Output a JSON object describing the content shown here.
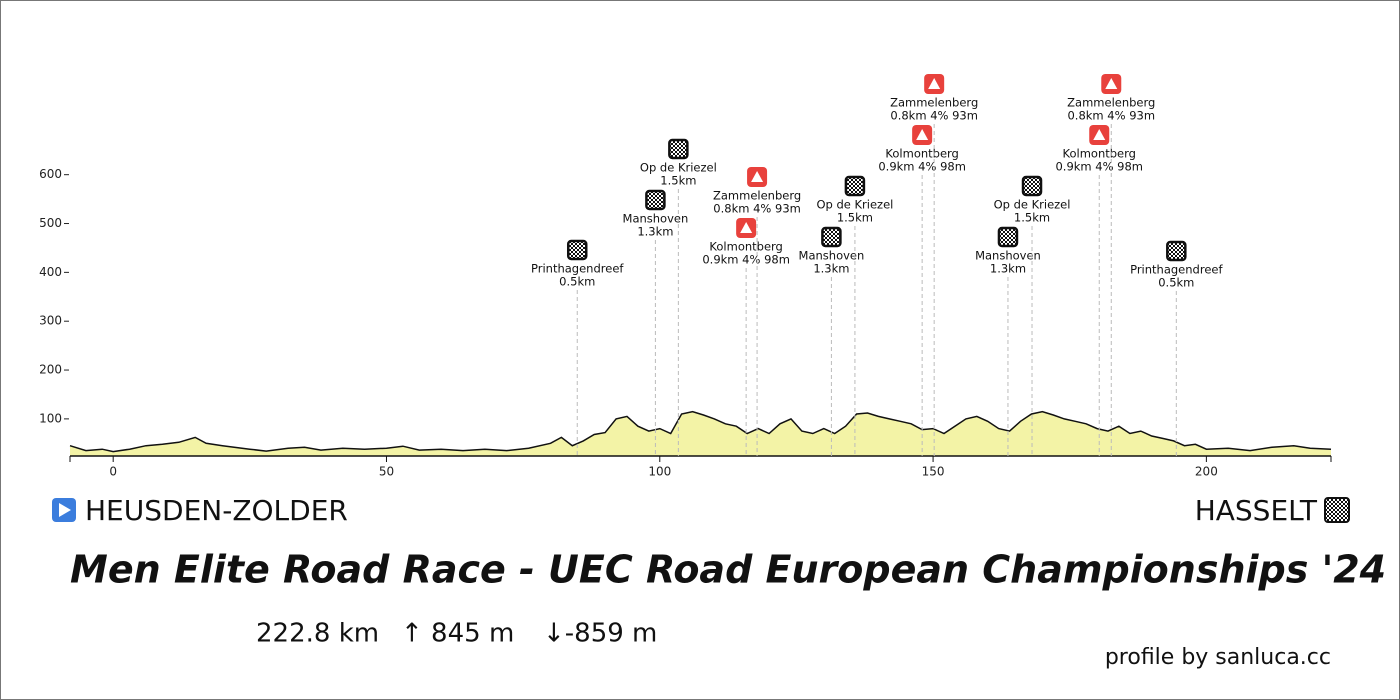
{
  "chart_data": {
    "type": "area",
    "title": "Men Elite Road Race - UEC Road European Championships '24",
    "start": "HEUSDEN-ZOLDER",
    "finish": "HASSELT",
    "distance": "222.8 km",
    "ascent": "↑ 845 m",
    "descent": "↓-859 m",
    "credit": "profile by sanluca.cc",
    "color": "#f3f3a6",
    "line_color": "#111",
    "xlim": [
      -7.9,
      222.8
    ],
    "xticks": [
      0,
      50,
      100,
      150,
      200
    ],
    "ylim": [
      24,
      800
    ],
    "yticks": [
      100,
      200,
      300,
      400,
      500,
      600
    ],
    "x": [
      -7.9,
      -5,
      -2,
      0,
      3,
      6,
      9,
      12,
      15,
      17,
      20,
      25,
      28,
      32,
      35,
      38,
      42,
      46,
      50,
      53,
      56,
      60,
      64,
      68,
      72,
      76,
      80,
      82,
      84,
      86,
      88,
      90,
      92,
      94,
      96,
      98,
      100,
      102,
      104,
      106,
      108,
      110,
      112,
      114,
      116,
      118,
      120,
      122,
      124,
      126,
      128,
      130,
      132,
      134,
      136,
      138,
      140,
      142,
      144,
      146,
      148,
      150,
      152,
      154,
      156,
      158,
      160,
      162,
      164,
      166,
      168,
      170,
      172,
      174,
      176,
      178,
      180,
      182,
      184,
      186,
      188,
      190,
      192,
      194,
      196,
      198,
      200,
      204,
      208,
      212,
      216,
      219,
      222.8
    ],
    "values": [
      45,
      35,
      38,
      33,
      38,
      45,
      48,
      52,
      62,
      50,
      45,
      38,
      34,
      40,
      42,
      36,
      40,
      38,
      40,
      44,
      36,
      38,
      35,
      38,
      35,
      40,
      50,
      62,
      45,
      55,
      68,
      72,
      100,
      105,
      85,
      75,
      80,
      70,
      110,
      115,
      108,
      100,
      90,
      85,
      70,
      80,
      70,
      90,
      100,
      75,
      70,
      80,
      70,
      85,
      110,
      112,
      105,
      100,
      95,
      90,
      78,
      80,
      70,
      85,
      100,
      105,
      95,
      80,
      75,
      95,
      110,
      115,
      108,
      100,
      95,
      90,
      80,
      75,
      85,
      70,
      75,
      65,
      60,
      55,
      45,
      48,
      38,
      40,
      35,
      42,
      45,
      40,
      38
    ],
    "climbs": [
      {
        "name": "Printhagendreef",
        "info": "0.5km",
        "km": 84.9,
        "color": "#111"
      },
      {
        "name": "Manshoven",
        "info": "1.3km",
        "km": 99.2,
        "color": "#111"
      },
      {
        "name": "Op de Kriezel",
        "info": "1.5km",
        "km": 103.4,
        "color": "#111"
      },
      {
        "name": "Kolmontberg",
        "info": "0.9km 4% 98m",
        "km": 115.8,
        "color": "#e8413c"
      },
      {
        "name": "Zammelenberg",
        "info": "0.8km 4% 93m",
        "km": 117.8,
        "color": "#e8413c"
      },
      {
        "name": "Manshoven",
        "info": "1.3km",
        "km": 131.4,
        "color": "#111"
      },
      {
        "name": "Op de Kriezel",
        "info": "1.5km",
        "km": 135.7,
        "color": "#111"
      },
      {
        "name": "Kolmontberg",
        "info": "0.9km 4% 98m",
        "km": 148.0,
        "color": "#e8413c"
      },
      {
        "name": "Zammelenberg",
        "info": "0.8km 4% 93m",
        "km": 150.2,
        "color": "#e8413c"
      },
      {
        "name": "Manshoven",
        "info": "1.3km",
        "km": 163.7,
        "color": "#111"
      },
      {
        "name": "Op de Kriezel",
        "info": "1.5km",
        "km": 168.1,
        "color": "#111"
      },
      {
        "name": "Kolmontberg",
        "info": "0.9km 4% 98m",
        "km": 180.4,
        "color": "#e8413c"
      },
      {
        "name": "Zammelenberg",
        "info": "0.8km 4% 93m",
        "km": 182.6,
        "color": "#e8413c"
      },
      {
        "name": "Printhagendreef",
        "info": "0.5km",
        "km": 194.5,
        "color": "#111"
      }
    ]
  }
}
